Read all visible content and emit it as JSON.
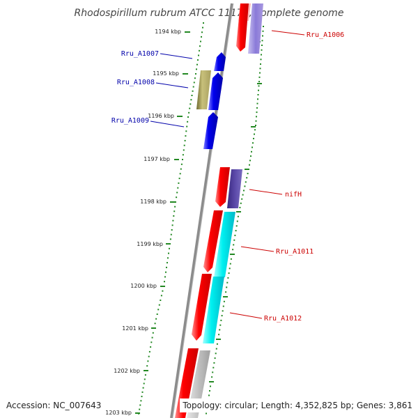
{
  "title": "Rhodospirillum rubrum ATCC 11170, complete genome",
  "accession": "Accession: NC_007643",
  "topology": "Topology: circular; Length: 4,352,825 bp; Genes: 3,861",
  "ruler_ticks": [
    "1194 kbp",
    "1195 kbp",
    "1196 kbp",
    "1197 kbp",
    "1198 kbp",
    "1199 kbp",
    "1200 kbp",
    "1201 kbp",
    "1202 kbp",
    "1203 kbp"
  ],
  "gene_labels": {
    "left": [
      "Rru_A1007",
      "Rru_A1008",
      "Rru_A1009"
    ],
    "right": [
      "Rru_A1006",
      "nifH",
      "Rru_A1011",
      "Rru_A1012"
    ]
  },
  "colors": {
    "reverse_strand": "#0000ee",
    "forward_strand": "#ee0000",
    "left_label": "#0000aa",
    "right_label": "#cc0000",
    "tick": "#228822",
    "backbone": "#888888",
    "olive_feature": "#aaa060",
    "cyan_feature": "#00e0e0",
    "purple_feature": "#6050b0",
    "gray_feature": "#b0b0b0"
  }
}
